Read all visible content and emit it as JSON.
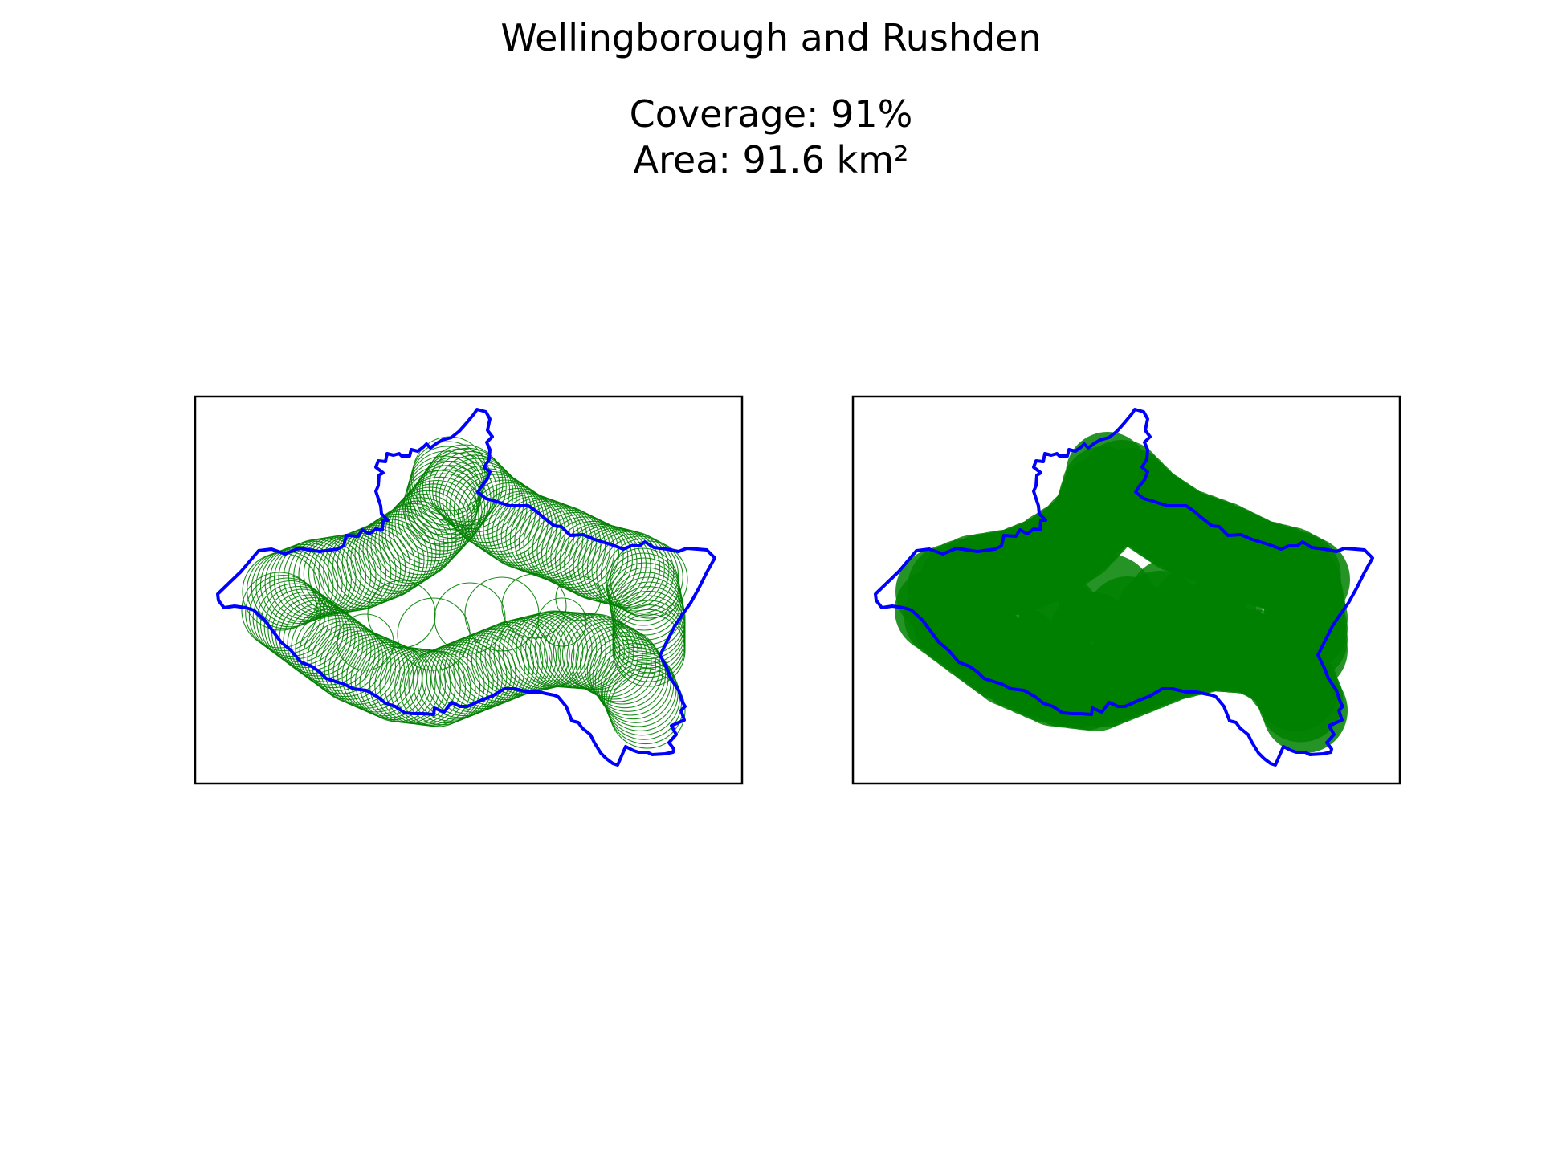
{
  "figure": {
    "title": "Wellingborough and Rushden",
    "coverage_label": "Coverage: 91%",
    "area_label": "Area: 91.6 km²",
    "coverage_percent": 91,
    "area_km2": 91.6
  },
  "colors": {
    "boundary": "#0000ff",
    "coverage": "#008000",
    "frame": "#000000",
    "background": "#ffffff"
  },
  "panels": [
    {
      "id": "left",
      "style": "outline",
      "description_kind": "coverage-circles-outlined"
    },
    {
      "id": "right",
      "style": "filled",
      "description_kind": "coverage-circles-filled"
    }
  ]
}
